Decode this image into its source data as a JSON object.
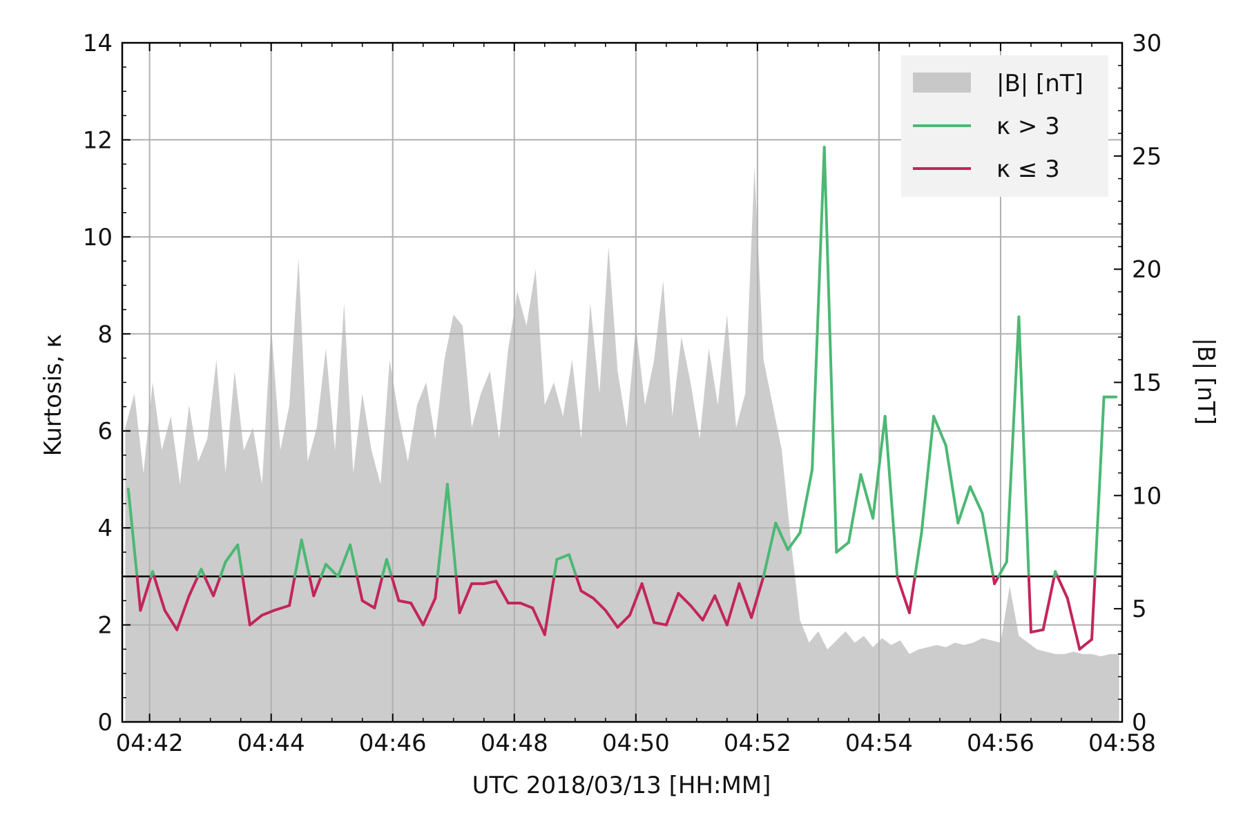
{
  "chart_data": {
    "type": "line",
    "xlabel": "UTC 2018/03/13 [HH:MM]",
    "ylabel": "Kurtosis, κ",
    "y2label": "|B| [nT]",
    "xticks": [
      "04:42",
      "04:44",
      "04:46",
      "04:48",
      "04:50",
      "04:52",
      "04:54",
      "04:56",
      "04:58"
    ],
    "xtick_minutes": [
      42,
      44,
      46,
      48,
      50,
      52,
      54,
      56,
      58
    ],
    "xlim": [
      41.55,
      58.0
    ],
    "ylim": [
      0,
      14
    ],
    "yticks": [
      0,
      2,
      4,
      6,
      8,
      10,
      12,
      14
    ],
    "y2lim": [
      0,
      30
    ],
    "y2ticks": [
      0,
      5,
      10,
      15,
      20,
      25,
      30
    ],
    "grid": true,
    "threshold": 3,
    "legend": {
      "position": "top-right",
      "entries": [
        {
          "label": "|B| [nT]",
          "color": "#c8c8c8",
          "kind": "area"
        },
        {
          "label": "κ > 3",
          "color": "#4cb874",
          "kind": "line"
        },
        {
          "label": "κ ≤ 3",
          "color": "#c2255c",
          "kind": "line"
        }
      ]
    },
    "colors": {
      "above": "#4cb874",
      "below": "#c2255c",
      "area": "#cccccc",
      "grid": "#b0b0b0"
    },
    "kurtosis_series": {
      "name": "Kurtosis, κ",
      "x": [
        41.65,
        41.85,
        42.05,
        42.25,
        42.45,
        42.65,
        42.85,
        43.05,
        43.25,
        43.45,
        43.65,
        43.85,
        44.05,
        44.3,
        44.5,
        44.7,
        44.9,
        45.1,
        45.3,
        45.5,
        45.7,
        45.9,
        46.1,
        46.3,
        46.5,
        46.7,
        46.9,
        47.1,
        47.3,
        47.5,
        47.7,
        47.9,
        48.1,
        48.3,
        48.5,
        48.7,
        48.9,
        49.1,
        49.3,
        49.5,
        49.7,
        49.9,
        50.1,
        50.3,
        50.5,
        50.7,
        50.9,
        51.1,
        51.3,
        51.5,
        51.7,
        51.9,
        52.1,
        52.3,
        52.5,
        52.7,
        52.9,
        53.1,
        53.3,
        53.5,
        53.7,
        53.9,
        54.1,
        54.3,
        54.5,
        54.7,
        54.9,
        55.1,
        55.3,
        55.5,
        55.7,
        55.9,
        56.1,
        56.3,
        56.5,
        56.7,
        56.9,
        57.1,
        57.3,
        57.5,
        57.7,
        57.9
      ],
      "y": [
        4.8,
        2.3,
        3.1,
        2.3,
        1.9,
        2.6,
        3.15,
        2.6,
        3.3,
        3.65,
        2.0,
        2.2,
        2.3,
        2.4,
        3.75,
        2.6,
        3.25,
        3.0,
        3.65,
        2.5,
        2.35,
        3.35,
        2.5,
        2.45,
        2.0,
        2.55,
        4.9,
        2.25,
        2.85,
        2.85,
        2.9,
        2.45,
        2.45,
        2.35,
        1.8,
        3.35,
        3.45,
        2.7,
        2.55,
        2.3,
        1.95,
        2.2,
        2.85,
        2.05,
        2.0,
        2.65,
        2.4,
        2.1,
        2.6,
        2.0,
        2.85,
        2.15,
        3.0,
        4.1,
        3.55,
        3.9,
        5.2,
        11.85,
        3.5,
        3.7,
        5.1,
        4.2,
        6.3,
        3.0,
        2.25,
        3.9,
        6.3,
        5.7,
        4.1,
        4.85,
        4.3,
        2.85,
        3.3,
        8.35,
        1.85,
        1.9,
        3.1,
        2.55,
        1.5,
        1.7,
        6.7,
        6.7
      ]
    },
    "field_series": {
      "name": "|B| [nT]",
      "x": [
        41.6,
        41.75,
        41.9,
        42.05,
        42.2,
        42.35,
        42.5,
        42.65,
        42.8,
        42.95,
        43.1,
        43.25,
        43.4,
        43.55,
        43.7,
        43.85,
        44.0,
        44.15,
        44.3,
        44.45,
        44.6,
        44.75,
        44.9,
        45.05,
        45.2,
        45.35,
        45.5,
        45.65,
        45.8,
        45.95,
        46.1,
        46.25,
        46.4,
        46.55,
        46.7,
        46.85,
        47.0,
        47.15,
        47.3,
        47.45,
        47.6,
        47.75,
        47.9,
        48.05,
        48.2,
        48.35,
        48.5,
        48.65,
        48.8,
        48.95,
        49.1,
        49.25,
        49.4,
        49.55,
        49.7,
        49.85,
        50.0,
        50.15,
        50.3,
        50.45,
        50.6,
        50.75,
        50.9,
        51.05,
        51.2,
        51.35,
        51.5,
        51.65,
        51.8,
        51.95,
        52.1,
        52.25,
        52.4,
        52.55,
        52.7,
        52.85,
        53.0,
        53.15,
        53.3,
        53.45,
        53.6,
        53.75,
        53.9,
        54.05,
        54.2,
        54.35,
        54.5,
        54.65,
        54.8,
        54.95,
        55.1,
        55.25,
        55.4,
        55.55,
        55.7,
        55.85,
        56.0,
        56.15,
        56.3,
        56.45,
        56.6,
        56.75,
        56.9,
        57.05,
        57.2,
        57.35,
        57.5,
        57.65,
        57.8,
        57.95
      ],
      "y": [
        13.0,
        14.5,
        11.0,
        15.0,
        12.0,
        13.5,
        10.5,
        14.0,
        11.5,
        12.5,
        16.0,
        11.0,
        15.5,
        12.0,
        13.0,
        10.5,
        17.5,
        12.0,
        14.0,
        20.5,
        11.5,
        13.0,
        16.5,
        12.0,
        18.5,
        11.0,
        14.5,
        12.0,
        10.5,
        16.0,
        13.5,
        11.5,
        14.0,
        15.0,
        12.5,
        16.0,
        18.0,
        17.5,
        13.0,
        14.5,
        15.5,
        12.5,
        16.5,
        19.0,
        17.5,
        20.0,
        14.0,
        15.0,
        13.5,
        16.0,
        12.5,
        18.5,
        14.5,
        21.0,
        15.5,
        13.0,
        17.5,
        14.0,
        16.0,
        19.5,
        13.5,
        17.0,
        15.0,
        12.5,
        16.5,
        14.0,
        18.0,
        13.0,
        14.5,
        24.5,
        16.0,
        14.0,
        12.0,
        8.0,
        4.5,
        3.5,
        4.0,
        3.2,
        3.6,
        4.0,
        3.5,
        3.8,
        3.3,
        3.7,
        3.4,
        3.6,
        3.0,
        3.2,
        3.3,
        3.4,
        3.3,
        3.5,
        3.4,
        3.5,
        3.7,
        3.6,
        3.5,
        6.0,
        3.8,
        3.5,
        3.2,
        3.1,
        3.0,
        3.0,
        3.1,
        3.0,
        3.0,
        2.9,
        3.0,
        3.0
      ]
    }
  }
}
